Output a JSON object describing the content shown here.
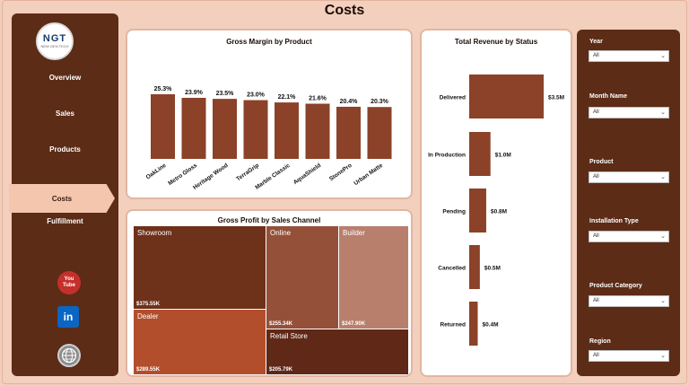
{
  "page": {
    "title": "Costs"
  },
  "logo": {
    "text": "NGT",
    "subtext": "NEW GEN TECH"
  },
  "nav": {
    "items": [
      {
        "label": "Overview"
      },
      {
        "label": "Sales"
      },
      {
        "label": "Products"
      },
      {
        "label": "Costs",
        "active": true
      },
      {
        "label": "Fulfillment"
      }
    ]
  },
  "social": {
    "youtube_top": "You",
    "youtube_bottom": "Tube",
    "linkedin": "in"
  },
  "colors": {
    "primary_brown": "#8b4228",
    "dark_brown": "#5c2c17",
    "background": "#f3cfbd",
    "active_nav": "#f3c6ad"
  },
  "gross_margin": {
    "title": "Gross Margin by Product"
  },
  "revenue_status": {
    "title": "Total Revenue by Status"
  },
  "gross_profit": {
    "title": "Gross Profit by Sales Channel",
    "tiles": [
      {
        "label": "Showroom",
        "value": "$375.55K"
      },
      {
        "label": "Online",
        "value": "$255.34K"
      },
      {
        "label": "Builder",
        "value": "$247.90K"
      },
      {
        "label": "Dealer",
        "value": "$289.55K"
      },
      {
        "label": "Retail Store",
        "value": "$205.79K"
      }
    ]
  },
  "filters": [
    {
      "label": "Year",
      "value": "All"
    },
    {
      "label": "Month Name",
      "value": "All"
    },
    {
      "label": "Product",
      "value": "All"
    },
    {
      "label": "Installation Type",
      "value": "All"
    },
    {
      "label": "Product Category",
      "value": "All"
    },
    {
      "label": "Region",
      "value": "All"
    }
  ],
  "chart_data": [
    {
      "type": "bar",
      "title": "Gross Margin by Product",
      "categories": [
        "OakLine",
        "Metro Gloss",
        "Heritage Wood",
        "TerraGrip",
        "Marble Classic",
        "AquaShield",
        "StonePro",
        "Urban Matte"
      ],
      "values": [
        25.3,
        23.9,
        23.5,
        23.0,
        22.1,
        21.6,
        20.4,
        20.3
      ],
      "data_labels": [
        "25.3%",
        "23.9%",
        "23.5%",
        "23.0%",
        "22.1%",
        "21.6%",
        "20.4%",
        "20.3%"
      ],
      "ylim": [
        0,
        28
      ],
      "color": "#8b4228"
    },
    {
      "type": "bar",
      "orientation": "horizontal",
      "title": "Total Revenue by Status",
      "categories": [
        "Delivered",
        "In Production",
        "Pending",
        "Cancelled",
        "Returned"
      ],
      "values": [
        3.5,
        1.0,
        0.8,
        0.5,
        0.4
      ],
      "data_labels": [
        "$3.5M",
        "$1.0M",
        "$0.8M",
        "$0.5M",
        "$0.4M"
      ],
      "unit": "M",
      "color": "#8b4228"
    },
    {
      "type": "treemap",
      "title": "Gross Profit by Sales Channel",
      "categories": [
        "Showroom",
        "Online",
        "Builder",
        "Dealer",
        "Retail Store"
      ],
      "values": [
        375.55,
        255.34,
        247.9,
        289.55,
        205.79
      ],
      "unit": "K"
    }
  ]
}
